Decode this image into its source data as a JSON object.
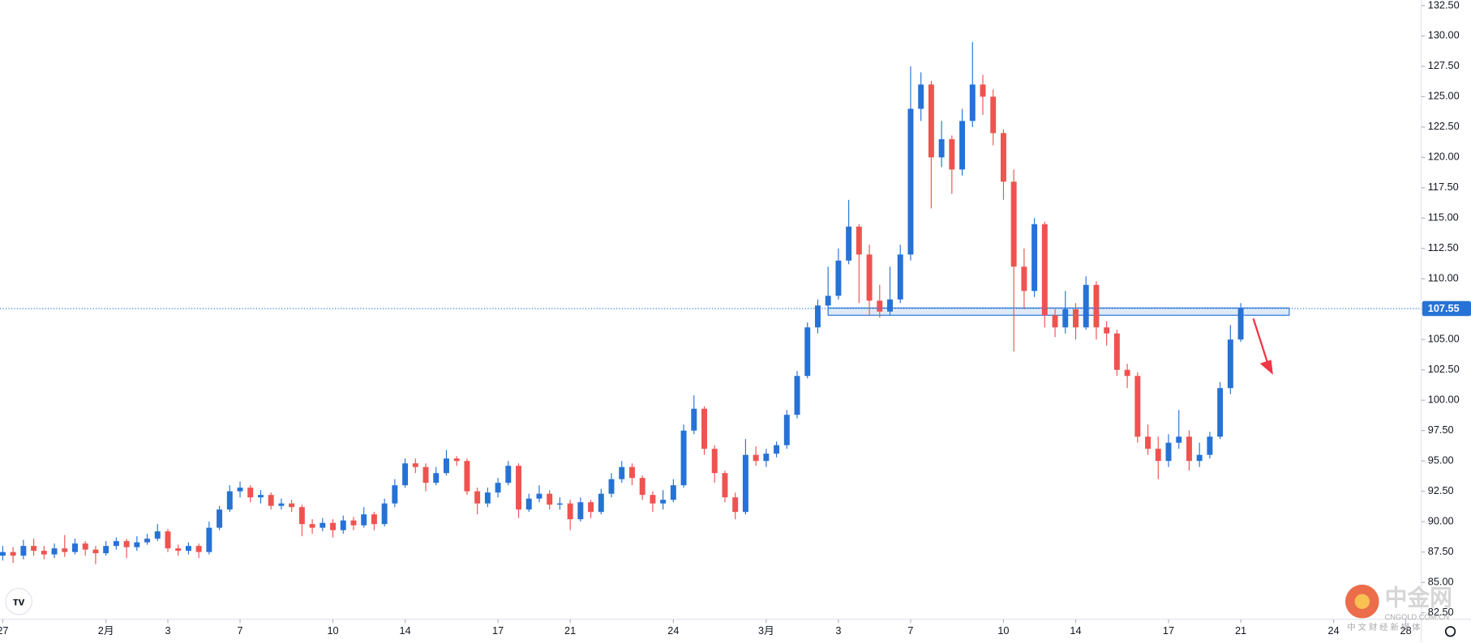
{
  "chart_data": {
    "type": "candlestick",
    "xlim": [
      -0.27,
      137.5
    ],
    "xticks": [
      {
        "value": 0,
        "label": "27"
      },
      {
        "value": 10,
        "label": "2月"
      },
      {
        "value": 16,
        "label": "3"
      },
      {
        "value": 23,
        "label": "7"
      },
      {
        "value": 32,
        "label": "10"
      },
      {
        "value": 39,
        "label": "14"
      },
      {
        "value": 48,
        "label": "17"
      },
      {
        "value": 55,
        "label": "21"
      },
      {
        "value": 65,
        "label": "24"
      },
      {
        "value": 74,
        "label": "3月"
      },
      {
        "value": 81,
        "label": "3"
      },
      {
        "value": 88,
        "label": "7"
      },
      {
        "value": 97,
        "label": "10"
      },
      {
        "value": 104,
        "label": "14"
      },
      {
        "value": 113,
        "label": "17"
      },
      {
        "value": 120,
        "label": "21"
      },
      {
        "value": 129,
        "label": "24"
      },
      {
        "value": 136,
        "label": "28"
      }
    ],
    "ylim": [
      81.96,
      132.96
    ],
    "yticks": [
      {
        "value": 82.5,
        "label": "82.50"
      },
      {
        "value": 85,
        "label": "85.00"
      },
      {
        "value": 87.5,
        "label": "87.50"
      },
      {
        "value": 90,
        "label": "90.00"
      },
      {
        "value": 92.5,
        "label": "92.50"
      },
      {
        "value": 95,
        "label": "95.00"
      },
      {
        "value": 97.5,
        "label": "97.50"
      },
      {
        "value": 100,
        "label": "100.00"
      },
      {
        "value": 102.5,
        "label": "102.50"
      },
      {
        "value": 105,
        "label": "105.00"
      },
      {
        "value": 107.5,
        "label": "107.50"
      },
      {
        "value": 110,
        "label": "110.00"
      },
      {
        "value": 112.5,
        "label": "112.50"
      },
      {
        "value": 115,
        "label": "115.00"
      },
      {
        "value": 117.5,
        "label": "117.50"
      },
      {
        "value": 120,
        "label": "120.00"
      },
      {
        "value": 122.5,
        "label": "122.50"
      },
      {
        "value": 125,
        "label": "125.00"
      },
      {
        "value": 127.5,
        "label": "127.50"
      },
      {
        "value": 130,
        "label": "130.00"
      },
      {
        "value": 132.5,
        "label": "132.50"
      }
    ],
    "grid": false,
    "up_color": "#2672d6",
    "down_color": "#ef5350",
    "series": {
      "open": [
        87.2,
        87.5,
        87.2,
        88.0,
        87.6,
        87.3,
        87.8,
        87.5,
        88.2,
        87.7,
        87.4,
        88.0,
        88.4,
        87.9,
        88.3,
        88.6,
        89.2,
        87.8,
        87.6,
        88.0,
        87.5,
        89.5,
        91.0,
        92.5,
        92.8,
        92.0,
        92.2,
        91.3,
        91.5,
        91.2,
        89.8,
        89.5,
        89.9,
        89.3,
        90.1,
        89.7,
        90.6,
        89.8,
        91.5,
        93.0,
        94.8,
        94.5,
        93.2,
        94.0,
        95.2,
        95.0,
        92.5,
        91.5,
        92.4,
        93.2,
        94.6,
        91.0,
        91.9,
        92.3,
        91.4,
        91.5,
        90.2,
        91.6,
        90.8,
        92.3,
        93.5,
        94.5,
        93.6,
        92.2,
        91.5,
        91.8,
        93.0,
        97.5,
        99.3,
        96.0,
        94.0,
        92.0,
        90.8,
        95.5,
        95.0,
        95.6,
        96.3,
        98.8,
        102.0,
        106.0,
        107.8,
        108.6,
        111.5,
        114.3,
        112.0,
        108.2,
        107.3,
        108.3,
        112.0,
        124.0,
        126.0,
        120.0,
        121.5,
        119.0,
        123.0,
        126.0,
        125.0,
        122.0,
        118.0,
        111.0,
        109.0,
        114.5,
        107.0,
        106.0,
        107.5,
        106.0,
        109.5,
        106.0,
        105.5,
        102.5,
        102.0,
        97.0,
        96.0,
        95.0,
        96.5,
        97.0,
        95.0,
        95.5,
        97.0,
        101.0,
        105.0
      ],
      "high": [
        88.0,
        87.9,
        88.5,
        88.6,
        88.0,
        88.2,
        88.9,
        88.6,
        88.4,
        88.0,
        88.4,
        88.7,
        88.6,
        88.8,
        89.0,
        89.8,
        89.4,
        88.1,
        88.3,
        88.2,
        90.0,
        91.3,
        93.0,
        93.3,
        93.0,
        92.6,
        92.4,
        91.9,
        91.8,
        91.4,
        90.2,
        90.3,
        90.2,
        90.5,
        90.4,
        91.2,
        90.8,
        91.9,
        93.5,
        95.2,
        95.2,
        94.8,
        94.5,
        95.9,
        95.4,
        95.2,
        92.8,
        92.8,
        93.6,
        95.0,
        94.8,
        92.3,
        93.0,
        92.6,
        92.0,
        91.8,
        92.0,
        91.8,
        92.7,
        94.0,
        95.0,
        94.8,
        93.8,
        92.5,
        92.6,
        93.5,
        98.0,
        100.4,
        99.5,
        96.3,
        94.2,
        92.4,
        96.8,
        96.2,
        96.0,
        96.6,
        99.2,
        102.4,
        106.4,
        108.3,
        111.0,
        112.5,
        116.5,
        114.5,
        112.8,
        109.5,
        111.0,
        112.8,
        127.5,
        127.0,
        126.3,
        123.0,
        121.8,
        124.0,
        129.5,
        126.8,
        125.6,
        122.3,
        119.0,
        112.5,
        115.0,
        114.7,
        107.5,
        109.0,
        108.0,
        110.2,
        109.8,
        106.5,
        105.8,
        103.0,
        102.3,
        98.0,
        97.0,
        97.2,
        99.2,
        97.5,
        96.5,
        97.4,
        101.5,
        106.2,
        108.0
      ],
      "low": [
        86.8,
        86.6,
        86.9,
        87.2,
        86.9,
        87.0,
        87.1,
        87.3,
        87.2,
        86.5,
        87.2,
        87.7,
        87.0,
        87.6,
        88.1,
        88.4,
        87.5,
        87.2,
        87.3,
        87.0,
        87.3,
        89.3,
        90.8,
        92.0,
        91.6,
        91.5,
        91.0,
        91.0,
        90.8,
        88.8,
        89.0,
        89.2,
        88.7,
        89.0,
        89.3,
        89.5,
        89.3,
        89.6,
        91.2,
        92.8,
        94.0,
        92.5,
        93.0,
        93.8,
        94.6,
        92.2,
        90.6,
        91.2,
        92.0,
        93.0,
        90.3,
        90.8,
        91.6,
        91.0,
        91.0,
        89.3,
        90.0,
        90.3,
        90.6,
        92.0,
        93.2,
        93.0,
        91.8,
        90.8,
        91.0,
        91.6,
        92.8,
        97.2,
        95.5,
        93.2,
        91.6,
        90.2,
        90.6,
        94.6,
        94.5,
        95.3,
        96.0,
        98.5,
        101.8,
        105.5,
        107.4,
        108.3,
        111.2,
        108.0,
        107.0,
        106.8,
        107.0,
        108.0,
        111.5,
        123.0,
        115.8,
        119.2,
        117.0,
        118.5,
        122.5,
        123.5,
        121.0,
        116.5,
        104.0,
        107.5,
        108.5,
        106.0,
        105.2,
        105.5,
        105.0,
        105.8,
        105.0,
        104.5,
        102.0,
        101.0,
        96.5,
        95.5,
        93.5,
        94.5,
        96.0,
        94.2,
        94.5,
        95.2,
        96.8,
        100.5,
        104.8
      ],
      "close": [
        87.5,
        87.2,
        88.0,
        87.6,
        87.3,
        87.8,
        87.5,
        88.2,
        87.7,
        87.4,
        88.0,
        88.4,
        87.9,
        88.3,
        88.6,
        89.2,
        87.8,
        87.6,
        88.0,
        87.5,
        89.5,
        91.0,
        92.5,
        92.8,
        92.0,
        92.2,
        91.3,
        91.5,
        91.2,
        89.8,
        89.5,
        89.9,
        89.3,
        90.1,
        89.7,
        90.6,
        89.8,
        91.5,
        93.0,
        94.8,
        94.5,
        93.2,
        94.0,
        95.2,
        95.0,
        92.5,
        91.5,
        92.4,
        93.2,
        94.6,
        91.0,
        91.9,
        92.3,
        91.4,
        91.5,
        90.2,
        91.6,
        90.8,
        92.3,
        93.5,
        94.5,
        93.6,
        92.2,
        91.5,
        91.8,
        93.0,
        97.5,
        99.3,
        96.0,
        94.0,
        92.0,
        90.8,
        95.5,
        95.0,
        95.6,
        96.3,
        98.8,
        102.0,
        106.0,
        107.8,
        108.6,
        111.5,
        114.3,
        112.0,
        108.2,
        107.3,
        108.3,
        112.0,
        124.0,
        126.0,
        120.0,
        121.5,
        119.0,
        123.0,
        126.0,
        125.0,
        122.0,
        118.0,
        111.0,
        109.0,
        114.5,
        107.0,
        106.0,
        107.5,
        106.0,
        109.5,
        106.0,
        105.5,
        102.5,
        102.0,
        97.0,
        96.0,
        95.0,
        96.5,
        97.0,
        95.0,
        95.5,
        97.0,
        101.0,
        105.0,
        107.55
      ]
    },
    "zone": {
      "low": 107.0,
      "high": 107.6,
      "x": [
        80,
        124.7
      ]
    },
    "watermark": {
      "name": "中金网",
      "site": "CNGOLD.COM.CN",
      "slogan": "中 文 财 经 新 媒 体"
    }
  }
}
